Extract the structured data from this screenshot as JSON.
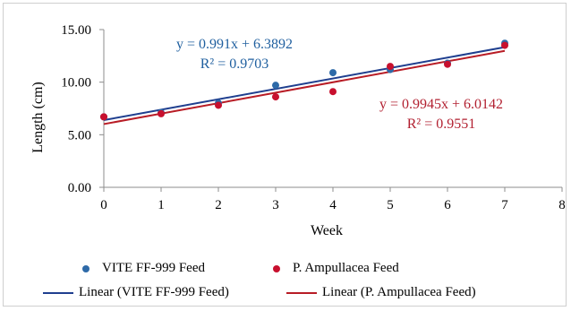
{
  "chart_data": {
    "type": "scatter",
    "xlabel": "Week",
    "ylabel": "Length (cm)",
    "xlim": [
      0,
      8
    ],
    "ylim": [
      0,
      15
    ],
    "x_ticks": [
      "0",
      "1",
      "2",
      "3",
      "4",
      "5",
      "6",
      "7",
      "8"
    ],
    "y_ticks": [
      "0.00",
      "5.00",
      "10.00",
      "15.00"
    ],
    "grid": false,
    "legend_position": "bottom",
    "series": [
      {
        "name": "VITE FF-999 Feed",
        "color": "#2e6aa8",
        "x": [
          0,
          1,
          2,
          3,
          4,
          5,
          6,
          7
        ],
        "y": [
          6.7,
          7.1,
          8.0,
          9.7,
          10.9,
          11.2,
          11.8,
          13.7
        ],
        "trendline": {
          "label": "Linear (VITE FF-999 Feed)",
          "color": "#1f3f8f",
          "slope": 0.991,
          "intercept": 6.3892,
          "equation": "y = 0.991x + 6.3892",
          "r2": "R² = 0.9703",
          "label_color": "#1f5f9f"
        }
      },
      {
        "name": "P. Ampullacea Feed",
        "color": "#c8102e",
        "x": [
          0,
          1,
          2,
          3,
          4,
          5,
          6,
          7
        ],
        "y": [
          6.7,
          7.0,
          7.8,
          8.6,
          9.1,
          11.5,
          11.7,
          13.5
        ],
        "trendline": {
          "label": "Linear (P. Ampullacea Feed)",
          "color": "#b81c25",
          "slope": 0.9945,
          "intercept": 6.0142,
          "equation": "y = 0.9945x + 6.0142",
          "r2": "R² = 0.9551",
          "label_color": "#b22030"
        }
      }
    ]
  }
}
